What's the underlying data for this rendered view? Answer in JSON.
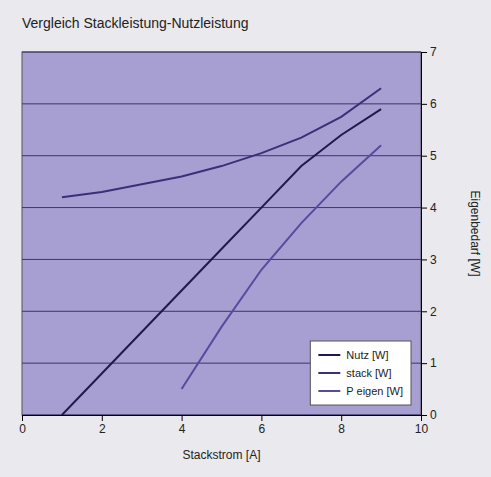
{
  "chart_data": {
    "type": "line",
    "title": "Vergleich Stackleistung-Nutzleistung",
    "xlabel": "Stackstrom [A]",
    "ylabel": "Eigenbedarf [W]",
    "x": [
      1,
      2,
      3,
      4,
      5,
      6,
      7,
      8,
      9
    ],
    "xlim": [
      0,
      10
    ],
    "xticks": [
      0,
      2,
      4,
      6,
      8,
      10
    ],
    "ylim": [
      0,
      7
    ],
    "yticks": [
      0,
      1,
      2,
      3,
      4,
      5,
      6,
      7
    ],
    "grid": true,
    "legend": "lower right",
    "series": [
      {
        "name": "Nutz [W]",
        "color": "#1f1a4a",
        "values": [
          0.0,
          0.8,
          1.6,
          2.4,
          3.2,
          4.0,
          4.8,
          5.4,
          5.9
        ]
      },
      {
        "name": "stack [W]",
        "color": "#3b2f7a",
        "values": [
          4.2,
          4.3,
          4.45,
          4.6,
          4.8,
          5.05,
          5.35,
          5.75,
          6.3
        ]
      },
      {
        "name": "P eigen [W]",
        "color": "#5a4a9e",
        "values": [
          null,
          null,
          null,
          0.5,
          1.7,
          2.8,
          3.7,
          4.5,
          5.2
        ]
      }
    ]
  }
}
